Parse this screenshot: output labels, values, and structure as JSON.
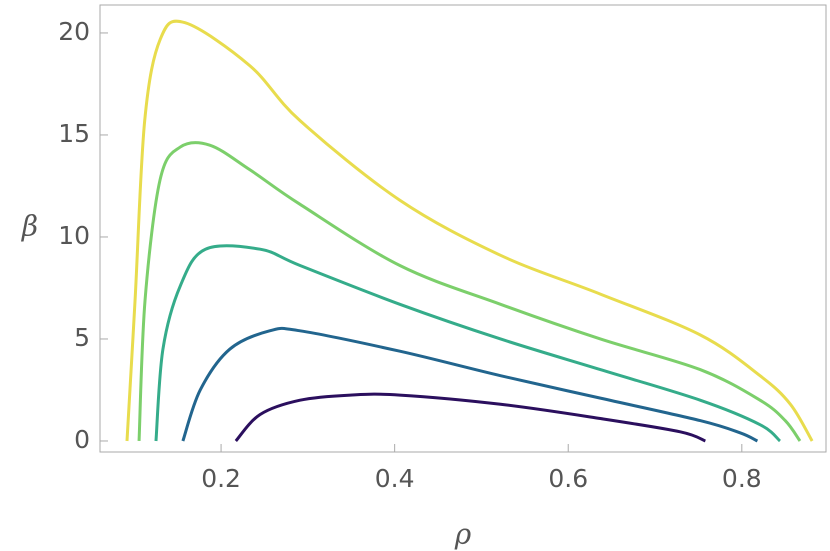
{
  "chart_data": {
    "type": "line",
    "x_label": "ρ",
    "y_label": "β",
    "xlim": [
      0.0605,
      0.897
    ],
    "ylim": [
      -0.54,
      21.37
    ],
    "xticks": [
      0.2,
      0.4,
      0.6,
      0.8
    ],
    "yticks": [
      0,
      5,
      10,
      15,
      20
    ],
    "series": [
      {
        "color": "#2b0f5e",
        "x": [
          0.217,
          0.245,
          0.291,
          0.349,
          0.406,
          0.522,
          0.637,
          0.729,
          0.758
        ],
        "values": [
          0,
          1.3,
          2.0,
          2.25,
          2.25,
          1.8,
          1.1,
          0.45,
          0
        ]
      },
      {
        "color": "#22658e",
        "x": [
          0.156,
          0.176,
          0.21,
          0.256,
          0.291,
          0.406,
          0.522,
          0.637,
          0.752,
          0.798,
          0.818
        ],
        "values": [
          0,
          2.5,
          4.5,
          5.4,
          5.4,
          4.4,
          3.2,
          2.1,
          1.0,
          0.4,
          0
        ]
      },
      {
        "color": "#35ac8a",
        "x": [
          0.125,
          0.133,
          0.153,
          0.182,
          0.245,
          0.291,
          0.406,
          0.522,
          0.637,
          0.752,
          0.821,
          0.844
        ],
        "values": [
          0,
          4.5,
          7.6,
          9.4,
          9.4,
          8.6,
          6.7,
          5.0,
          3.5,
          2.0,
          0.8,
          0
        ]
      },
      {
        "color": "#7ccf6b",
        "x": [
          0.1055,
          0.1124,
          0.1297,
          0.1527,
          0.187,
          0.233,
          0.291,
          0.406,
          0.522,
          0.637,
          0.752,
          0.821,
          0.85,
          0.867
        ],
        "values": [
          0,
          6.9,
          12.8,
          14.4,
          14.5,
          13.3,
          11.6,
          8.6,
          6.7,
          5.0,
          3.5,
          2.0,
          1.0,
          0
        ]
      },
      {
        "color": "#e8dc4d",
        "x": [
          0.0916,
          0.1009,
          0.112,
          0.13,
          0.1585,
          0.233,
          0.291,
          0.406,
          0.522,
          0.637,
          0.752,
          0.821,
          0.856,
          0.881
        ],
        "values": [
          0,
          6.9,
          15.7,
          19.7,
          20.5,
          18.4,
          15.7,
          11.8,
          9.1,
          7.2,
          5.2,
          3.2,
          1.8,
          0
        ]
      }
    ]
  }
}
